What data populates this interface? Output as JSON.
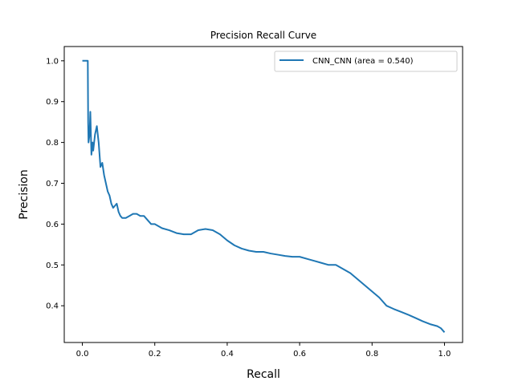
{
  "chart_data": {
    "type": "line",
    "title": "Precision Recall Curve",
    "xlabel": "Recall",
    "ylabel": "Precision",
    "xlim": [
      -0.05,
      1.05
    ],
    "ylim": [
      0.31,
      1.035
    ],
    "xticks": [
      0.0,
      0.2,
      0.4,
      0.6,
      0.8,
      1.0
    ],
    "xtick_labels": [
      "0.0",
      "0.2",
      "0.4",
      "0.6",
      "0.8",
      "1.0"
    ],
    "yticks": [
      0.4,
      0.5,
      0.6,
      0.7,
      0.8,
      0.9,
      1.0
    ],
    "ytick_labels": [
      "0.4",
      "0.5",
      "0.6",
      "0.7",
      "0.8",
      "0.9",
      "1.0"
    ],
    "grid": false,
    "legend_position": "top-right",
    "series": [
      {
        "name": "CNN_CNN (area = 0.540)",
        "color": "#1f77b4",
        "x": [
          0.0,
          0.015,
          0.016,
          0.017,
          0.02,
          0.022,
          0.025,
          0.028,
          0.03,
          0.035,
          0.04,
          0.045,
          0.05,
          0.055,
          0.06,
          0.065,
          0.07,
          0.075,
          0.08,
          0.085,
          0.09,
          0.095,
          0.1,
          0.105,
          0.11,
          0.12,
          0.13,
          0.14,
          0.15,
          0.16,
          0.17,
          0.18,
          0.19,
          0.2,
          0.22,
          0.24,
          0.26,
          0.28,
          0.3,
          0.32,
          0.34,
          0.36,
          0.38,
          0.4,
          0.42,
          0.44,
          0.46,
          0.48,
          0.5,
          0.52,
          0.54,
          0.56,
          0.58,
          0.6,
          0.62,
          0.64,
          0.66,
          0.68,
          0.7,
          0.72,
          0.74,
          0.76,
          0.78,
          0.8,
          0.82,
          0.84,
          0.86,
          0.88,
          0.9,
          0.92,
          0.94,
          0.96,
          0.98,
          0.99,
          1.0
        ],
        "y": [
          1.0,
          1.0,
          0.85,
          0.8,
          0.82,
          0.875,
          0.77,
          0.8,
          0.78,
          0.82,
          0.84,
          0.8,
          0.74,
          0.75,
          0.72,
          0.7,
          0.68,
          0.67,
          0.65,
          0.64,
          0.645,
          0.65,
          0.63,
          0.62,
          0.615,
          0.615,
          0.62,
          0.625,
          0.625,
          0.62,
          0.62,
          0.61,
          0.6,
          0.6,
          0.59,
          0.585,
          0.578,
          0.575,
          0.575,
          0.585,
          0.588,
          0.585,
          0.575,
          0.56,
          0.548,
          0.54,
          0.535,
          0.532,
          0.532,
          0.528,
          0.525,
          0.522,
          0.52,
          0.52,
          0.515,
          0.51,
          0.505,
          0.5,
          0.5,
          0.49,
          0.48,
          0.465,
          0.45,
          0.435,
          0.42,
          0.4,
          0.392,
          0.385,
          0.378,
          0.37,
          0.362,
          0.355,
          0.35,
          0.345,
          0.335
        ]
      }
    ]
  }
}
